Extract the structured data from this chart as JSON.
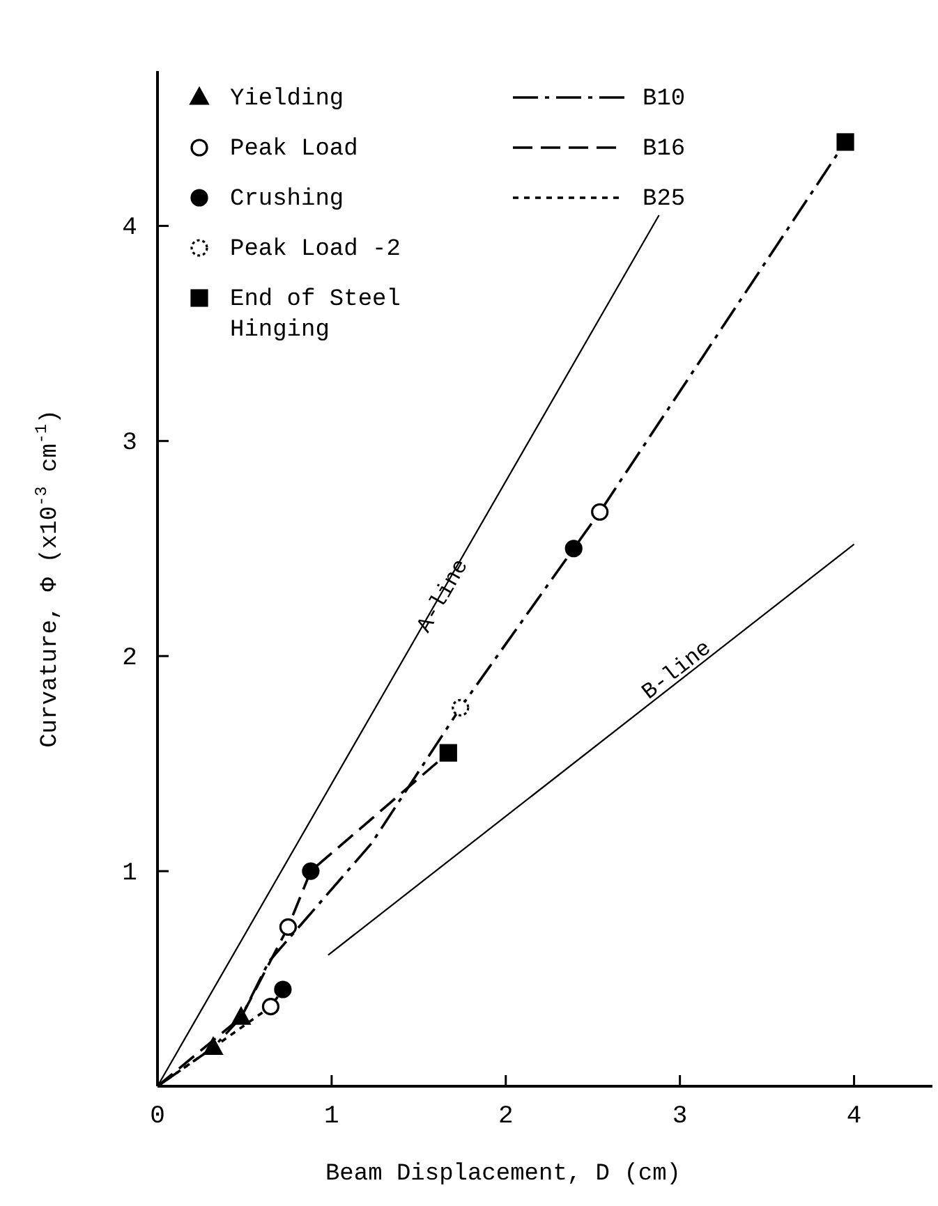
{
  "chart_data": {
    "type": "line",
    "xlabel": "Beam Displacement, D (cm)",
    "ylabel": "Curvature, Φ (x10$^{-3}$ cm$^{-1}$)",
    "xlim": [
      0,
      4.45
    ],
    "ylim": [
      0,
      4.72
    ],
    "xticks": [
      0,
      1,
      2,
      3,
      4
    ],
    "yticks": [
      1,
      2,
      3,
      4
    ],
    "legend": "top left",
    "annotations": [
      "A-line",
      "B-line"
    ],
    "series": [
      {
        "color": "#000000",
        "line_style": "solid",
        "x": [
          0,
          2.88
        ],
        "values": [
          0,
          4.05
        ]
      },
      {
        "color": "#000000",
        "line_style": "solid",
        "x": [
          0.98,
          4.0
        ],
        "values": [
          0.61,
          2.52
        ]
      },
      {
        "name": "B10",
        "color": "#000000",
        "line_style": "dashdot",
        "x": [
          0,
          0.32,
          0.48,
          0.64,
          1.23,
          1.74,
          2.39,
          2.54,
          3.95
        ],
        "values": [
          0,
          0.18,
          0.32,
          0.58,
          1.13,
          1.76,
          2.5,
          2.67,
          4.39
        ]
      },
      {
        "name": "B16",
        "color": "#000000",
        "line_style": "dashed",
        "x": [
          0,
          0.48,
          0.75,
          0.88,
          1.67
        ],
        "values": [
          0,
          0.32,
          0.74,
          1.0,
          1.55
        ]
      },
      {
        "name": "B25",
        "color": "#000000",
        "line_style": "dotted",
        "x": [
          0,
          0.32,
          0.65,
          0.72
        ],
        "values": [
          0,
          0.18,
          0.37,
          0.45
        ]
      },
      {
        "name": "Yielding",
        "type": "scatter",
        "color": "#000000",
        "marker": "triangle",
        "x": [
          0.32,
          0.48
        ],
        "values": [
          0.18,
          0.32
        ]
      },
      {
        "name": "Peak Load",
        "type": "scatter",
        "color": "#ffffff",
        "marker": "circle",
        "x": [
          0.65,
          0.75,
          2.54
        ],
        "values": [
          0.37,
          0.74,
          2.67
        ]
      },
      {
        "name": "Crushing",
        "type": "scatter",
        "color": "#000000",
        "marker": "circle",
        "x": [
          0.72,
          0.88,
          2.39
        ],
        "values": [
          0.45,
          1.0,
          2.5
        ]
      },
      {
        "name": "Peak Load -2",
        "type": "scatter",
        "color": "#ffffff",
        "marker": "circle",
        "line_style": "dotted",
        "x": [
          1.74
        ],
        "values": [
          1.76
        ]
      },
      {
        "name": "End of Steel Hinging",
        "type": "scatter",
        "color": "#000000",
        "marker": "square",
        "x": [
          1.67,
          3.95
        ],
        "values": [
          1.55,
          4.39
        ]
      }
    ]
  }
}
